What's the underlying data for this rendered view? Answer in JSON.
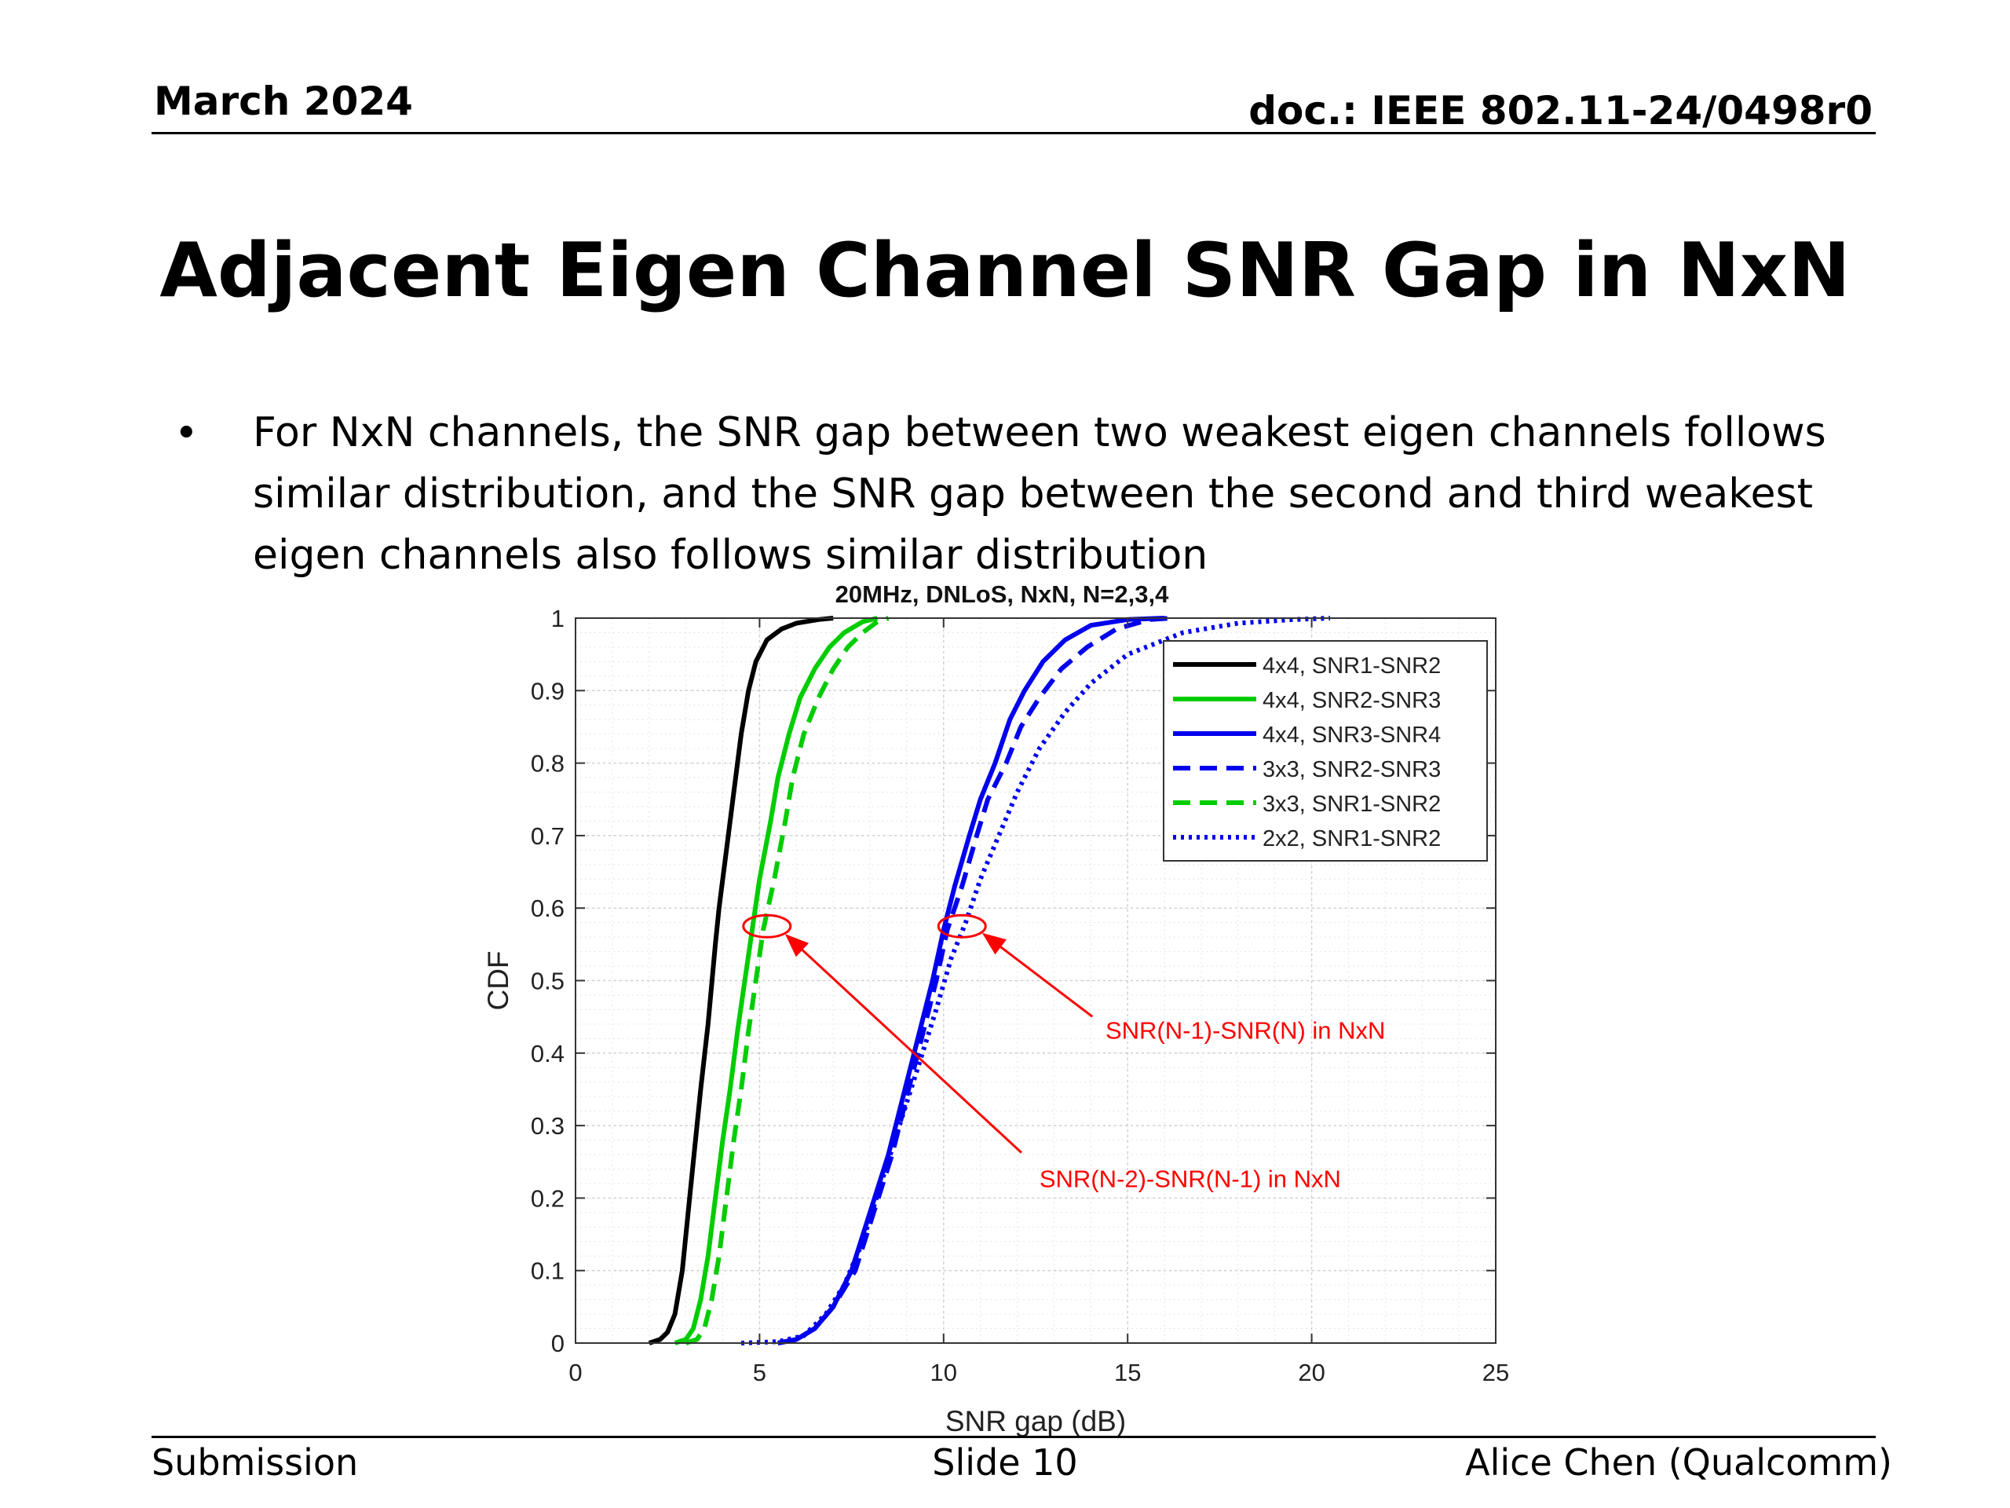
{
  "header": {
    "date": "March 2024",
    "doc_id": "doc.: IEEE 802.11-24/0498r0"
  },
  "slide": {
    "title": "Adjacent Eigen Channel SNR Gap in NxN",
    "bullet_marker": "•",
    "bullet": "For NxN channels, the SNR gap between two weakest eigen channels follows similar distribution, and the SNR gap between the second and third weakest eigen channels also follows similar distribution"
  },
  "footer": {
    "left": "Submission",
    "center": "Slide 10",
    "right": "Alice Chen (Qualcomm)"
  },
  "chart_data": {
    "type": "line",
    "title": "20MHz, DNLoS, NxN, N=2,3,4",
    "xlabel": "SNR gap (dB)",
    "ylabel": "CDF",
    "xlim": [
      0,
      25
    ],
    "ylim": [
      0,
      1
    ],
    "xticks": [
      0,
      5,
      10,
      15,
      20,
      25
    ],
    "yticks": [
      0,
      0.1,
      0.2,
      0.3,
      0.4,
      0.5,
      0.6,
      0.7,
      0.8,
      0.9,
      1
    ],
    "grid": true,
    "minor_grid": true,
    "legend_position": "top-right",
    "series": [
      {
        "name": "4x4, SNR1-SNR2",
        "color": "#000000",
        "style": "solid",
        "points": [
          [
            2.0,
            0
          ],
          [
            2.3,
            0.005
          ],
          [
            2.5,
            0.015
          ],
          [
            2.7,
            0.04
          ],
          [
            2.9,
            0.1
          ],
          [
            3.1,
            0.2
          ],
          [
            3.3,
            0.3
          ],
          [
            3.4,
            0.35
          ],
          [
            3.6,
            0.44
          ],
          [
            3.8,
            0.55
          ],
          [
            3.9,
            0.6
          ],
          [
            4.1,
            0.68
          ],
          [
            4.3,
            0.76
          ],
          [
            4.5,
            0.84
          ],
          [
            4.7,
            0.9
          ],
          [
            4.9,
            0.94
          ],
          [
            5.2,
            0.97
          ],
          [
            5.6,
            0.985
          ],
          [
            6.0,
            0.993
          ],
          [
            6.6,
            0.998
          ],
          [
            7.0,
            1.0
          ]
        ]
      },
      {
        "name": "4x4, SNR2-SNR3",
        "color": "#00cc00",
        "style": "solid",
        "points": [
          [
            2.7,
            0
          ],
          [
            3.0,
            0.005
          ],
          [
            3.2,
            0.02
          ],
          [
            3.4,
            0.06
          ],
          [
            3.6,
            0.12
          ],
          [
            3.8,
            0.2
          ],
          [
            4.0,
            0.28
          ],
          [
            4.2,
            0.35
          ],
          [
            4.4,
            0.43
          ],
          [
            4.6,
            0.5
          ],
          [
            4.8,
            0.57
          ],
          [
            5.0,
            0.64
          ],
          [
            5.3,
            0.72
          ],
          [
            5.5,
            0.78
          ],
          [
            5.8,
            0.84
          ],
          [
            6.1,
            0.89
          ],
          [
            6.5,
            0.93
          ],
          [
            6.9,
            0.96
          ],
          [
            7.3,
            0.98
          ],
          [
            7.8,
            0.995
          ],
          [
            8.2,
            1.0
          ]
        ]
      },
      {
        "name": "4x4, SNR3-SNR4",
        "color": "#0000ee",
        "style": "solid",
        "points": [
          [
            5.5,
            0
          ],
          [
            6.0,
            0.005
          ],
          [
            6.5,
            0.02
          ],
          [
            7.0,
            0.05
          ],
          [
            7.5,
            0.1
          ],
          [
            8.0,
            0.18
          ],
          [
            8.5,
            0.26
          ],
          [
            9.0,
            0.36
          ],
          [
            9.3,
            0.42
          ],
          [
            9.7,
            0.5
          ],
          [
            10.0,
            0.57
          ],
          [
            10.3,
            0.63
          ],
          [
            10.7,
            0.7
          ],
          [
            11.0,
            0.75
          ],
          [
            11.4,
            0.8
          ],
          [
            11.8,
            0.86
          ],
          [
            12.2,
            0.9
          ],
          [
            12.7,
            0.94
          ],
          [
            13.3,
            0.97
          ],
          [
            14.0,
            0.99
          ],
          [
            15.0,
            0.998
          ],
          [
            16.0,
            1.0
          ]
        ]
      },
      {
        "name": "3x3, SNR2-SNR3",
        "color": "#0000ee",
        "style": "dashed",
        "points": [
          [
            5.5,
            0
          ],
          [
            6.0,
            0.005
          ],
          [
            6.5,
            0.02
          ],
          [
            7.0,
            0.05
          ],
          [
            7.6,
            0.1
          ],
          [
            8.1,
            0.18
          ],
          [
            8.6,
            0.26
          ],
          [
            9.1,
            0.36
          ],
          [
            9.4,
            0.42
          ],
          [
            9.8,
            0.5
          ],
          [
            10.1,
            0.57
          ],
          [
            10.5,
            0.63
          ],
          [
            10.9,
            0.7
          ],
          [
            11.2,
            0.75
          ],
          [
            11.7,
            0.8
          ],
          [
            12.1,
            0.85
          ],
          [
            12.6,
            0.89
          ],
          [
            13.2,
            0.93
          ],
          [
            13.9,
            0.96
          ],
          [
            14.7,
            0.985
          ],
          [
            15.6,
            0.998
          ],
          [
            16.2,
            1.0
          ]
        ]
      },
      {
        "name": "3x3, SNR1-SNR2",
        "color": "#00cc00",
        "style": "dashed",
        "points": [
          [
            3.0,
            0
          ],
          [
            3.3,
            0.005
          ],
          [
            3.5,
            0.02
          ],
          [
            3.7,
            0.06
          ],
          [
            3.9,
            0.12
          ],
          [
            4.1,
            0.2
          ],
          [
            4.3,
            0.28
          ],
          [
            4.5,
            0.35
          ],
          [
            4.7,
            0.43
          ],
          [
            4.9,
            0.5
          ],
          [
            5.1,
            0.57
          ],
          [
            5.4,
            0.64
          ],
          [
            5.7,
            0.72
          ],
          [
            5.9,
            0.78
          ],
          [
            6.2,
            0.84
          ],
          [
            6.6,
            0.89
          ],
          [
            7.0,
            0.93
          ],
          [
            7.4,
            0.96
          ],
          [
            7.8,
            0.98
          ],
          [
            8.2,
            0.995
          ],
          [
            8.5,
            1.0
          ]
        ]
      },
      {
        "name": "2x2, SNR1-SNR2",
        "color": "#0000ee",
        "style": "dotted",
        "points": [
          [
            4.5,
            0
          ],
          [
            5.5,
            0.002
          ],
          [
            6.2,
            0.01
          ],
          [
            6.8,
            0.04
          ],
          [
            7.3,
            0.08
          ],
          [
            7.8,
            0.14
          ],
          [
            8.3,
            0.22
          ],
          [
            8.8,
            0.3
          ],
          [
            9.3,
            0.38
          ],
          [
            9.8,
            0.46
          ],
          [
            10.2,
            0.53
          ],
          [
            10.6,
            0.58
          ],
          [
            11.0,
            0.64
          ],
          [
            11.5,
            0.7
          ],
          [
            12.0,
            0.76
          ],
          [
            12.6,
            0.82
          ],
          [
            13.3,
            0.87
          ],
          [
            14.0,
            0.91
          ],
          [
            15.0,
            0.95
          ],
          [
            16.5,
            0.98
          ],
          [
            18.0,
            0.993
          ],
          [
            19.5,
            0.998
          ],
          [
            20.5,
            1.0
          ]
        ]
      }
    ],
    "annotations": [
      {
        "text": "SNR(N-1)-SNR(N) in NxN",
        "color": "#ff0000",
        "ellipse_center": [
          10.5,
          0.575
        ],
        "label_at": [
          18.2,
          0.42
        ]
      },
      {
        "text": "SNR(N-2)-SNR(N-1) in NxN",
        "color": "#ff0000",
        "ellipse_center": [
          5.2,
          0.575
        ],
        "label_at": [
          16.7,
          0.215
        ]
      }
    ]
  }
}
